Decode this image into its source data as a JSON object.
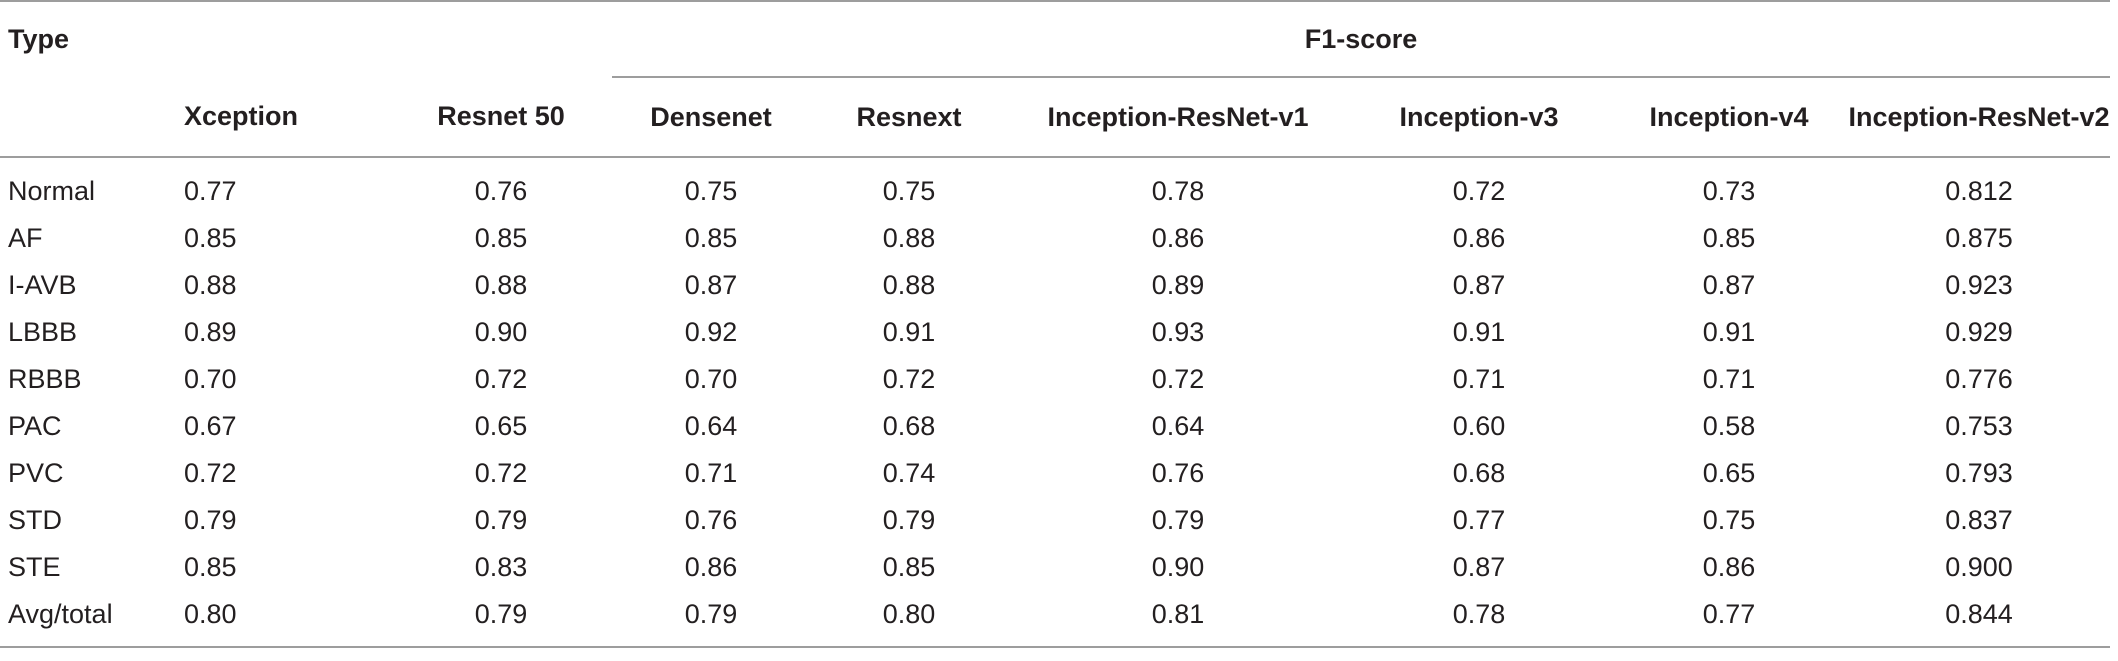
{
  "table": {
    "type_header": "Type",
    "group_header": "F1-score",
    "columns": [
      "Xception",
      "Resnet 50",
      "Densenet",
      "Resnext",
      "Inception-ResNet-v1",
      "Inception-v3",
      "Inception-v4",
      "Inception-ResNet-v2"
    ],
    "rows": [
      {
        "type": "Normal",
        "values": [
          "0.77",
          "0.76",
          "0.75",
          "0.75",
          "0.78",
          "0.72",
          "0.73",
          "0.812"
        ]
      },
      {
        "type": "AF",
        "values": [
          "0.85",
          "0.85",
          "0.85",
          "0.88",
          "0.86",
          "0.86",
          "0.85",
          "0.875"
        ]
      },
      {
        "type": "I-AVB",
        "values": [
          "0.88",
          "0.88",
          "0.87",
          "0.88",
          "0.89",
          "0.87",
          "0.87",
          "0.923"
        ]
      },
      {
        "type": "LBBB",
        "values": [
          "0.89",
          "0.90",
          "0.92",
          "0.91",
          "0.93",
          "0.91",
          "0.91",
          "0.929"
        ]
      },
      {
        "type": "RBBB",
        "values": [
          "0.70",
          "0.72",
          "0.70",
          "0.72",
          "0.72",
          "0.71",
          "0.71",
          "0.776"
        ]
      },
      {
        "type": "PAC",
        "values": [
          "0.67",
          "0.65",
          "0.64",
          "0.68",
          "0.64",
          "0.60",
          "0.58",
          "0.753"
        ]
      },
      {
        "type": "PVC",
        "values": [
          "0.72",
          "0.72",
          "0.71",
          "0.74",
          "0.76",
          "0.68",
          "0.65",
          "0.793"
        ]
      },
      {
        "type": "STD",
        "values": [
          "0.79",
          "0.79",
          "0.76",
          "0.79",
          "0.79",
          "0.77",
          "0.75",
          "0.837"
        ]
      },
      {
        "type": "STE",
        "values": [
          "0.85",
          "0.83",
          "0.86",
          "0.85",
          "0.90",
          "0.87",
          "0.86",
          "0.900"
        ]
      },
      {
        "type": "Avg/total",
        "values": [
          "0.80",
          "0.79",
          "0.79",
          "0.80",
          "0.81",
          "0.78",
          "0.77",
          "0.844"
        ]
      }
    ]
  },
  "colors": {
    "text": "#231f20",
    "rule": "#9d9d9d"
  }
}
